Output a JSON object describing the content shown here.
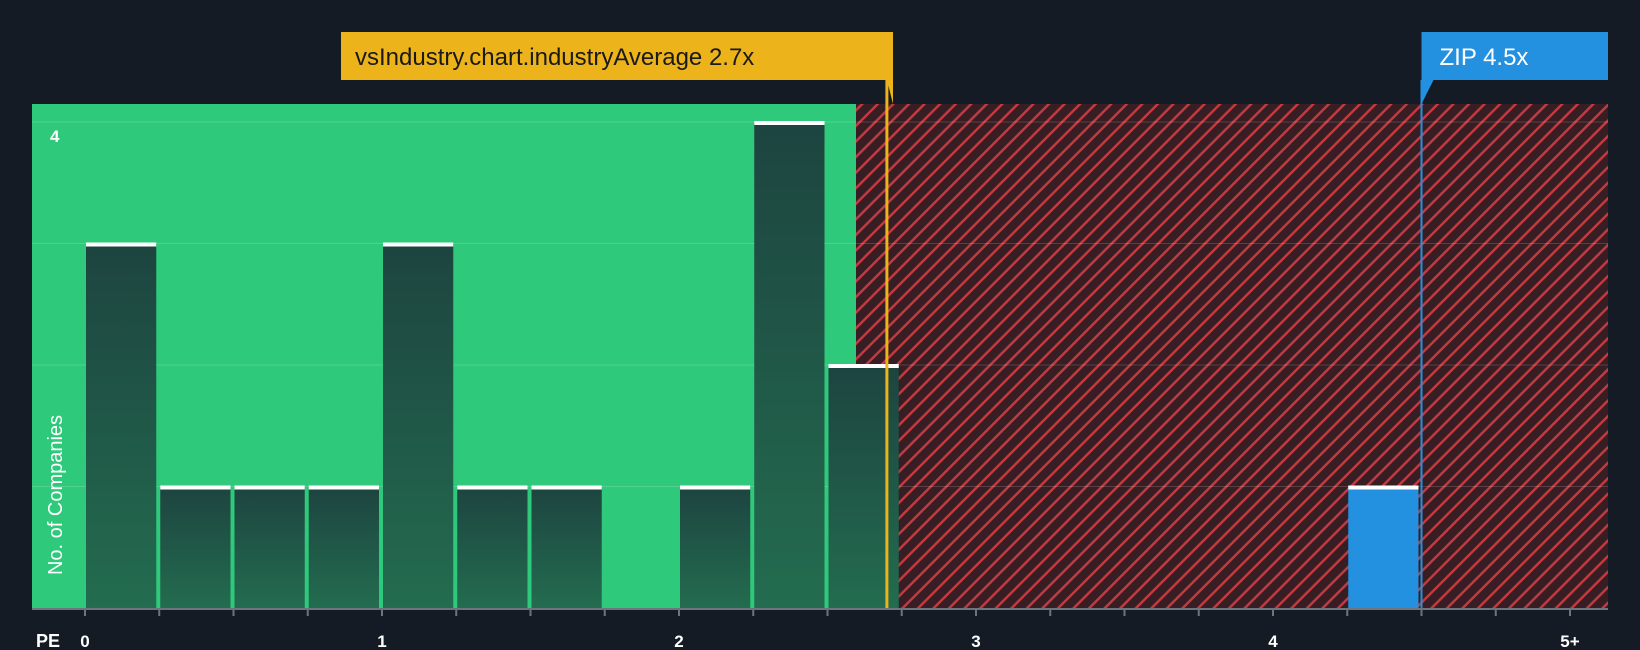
{
  "chart_data": {
    "type": "bar",
    "title": "",
    "xlabel": "PE",
    "ylabel": "No. of Companies",
    "x_ticks": [
      "0",
      "1",
      "2",
      "3",
      "4",
      "5+"
    ],
    "y_ticks": [
      "4"
    ],
    "xlim": [
      0,
      5.2
    ],
    "ylim": [
      0,
      4
    ],
    "bin_width": 0.25,
    "bins": [
      {
        "x0": 0.0,
        "count": 3
      },
      {
        "x0": 0.25,
        "count": 1
      },
      {
        "x0": 0.5,
        "count": 1
      },
      {
        "x0": 0.75,
        "count": 1
      },
      {
        "x0": 1.0,
        "count": 3
      },
      {
        "x0": 1.25,
        "count": 1
      },
      {
        "x0": 1.5,
        "count": 1
      },
      {
        "x0": 1.75,
        "count": 0
      },
      {
        "x0": 2.0,
        "count": 1
      },
      {
        "x0": 2.25,
        "count": 4
      },
      {
        "x0": 2.5,
        "count": 2
      },
      {
        "x0": 4.25,
        "count": 1,
        "highlight": true
      }
    ],
    "industry_average": {
      "label": "vsIndustry.chart.industryAverage 2.7x",
      "value": 2.7
    },
    "company": {
      "label": "ZIP 4.5x",
      "value": 4.5
    },
    "colors": {
      "background": "#151b24",
      "below_zone": "#2fc97b",
      "above_zone": "#371d24",
      "hatch": "#c23a3e",
      "bar": "#1f4a41",
      "bar_cap": "#ffffff",
      "highlight_bar": "#2491e0",
      "industry_callout": "#ecb31b",
      "company_callout": "#2491e0"
    }
  }
}
